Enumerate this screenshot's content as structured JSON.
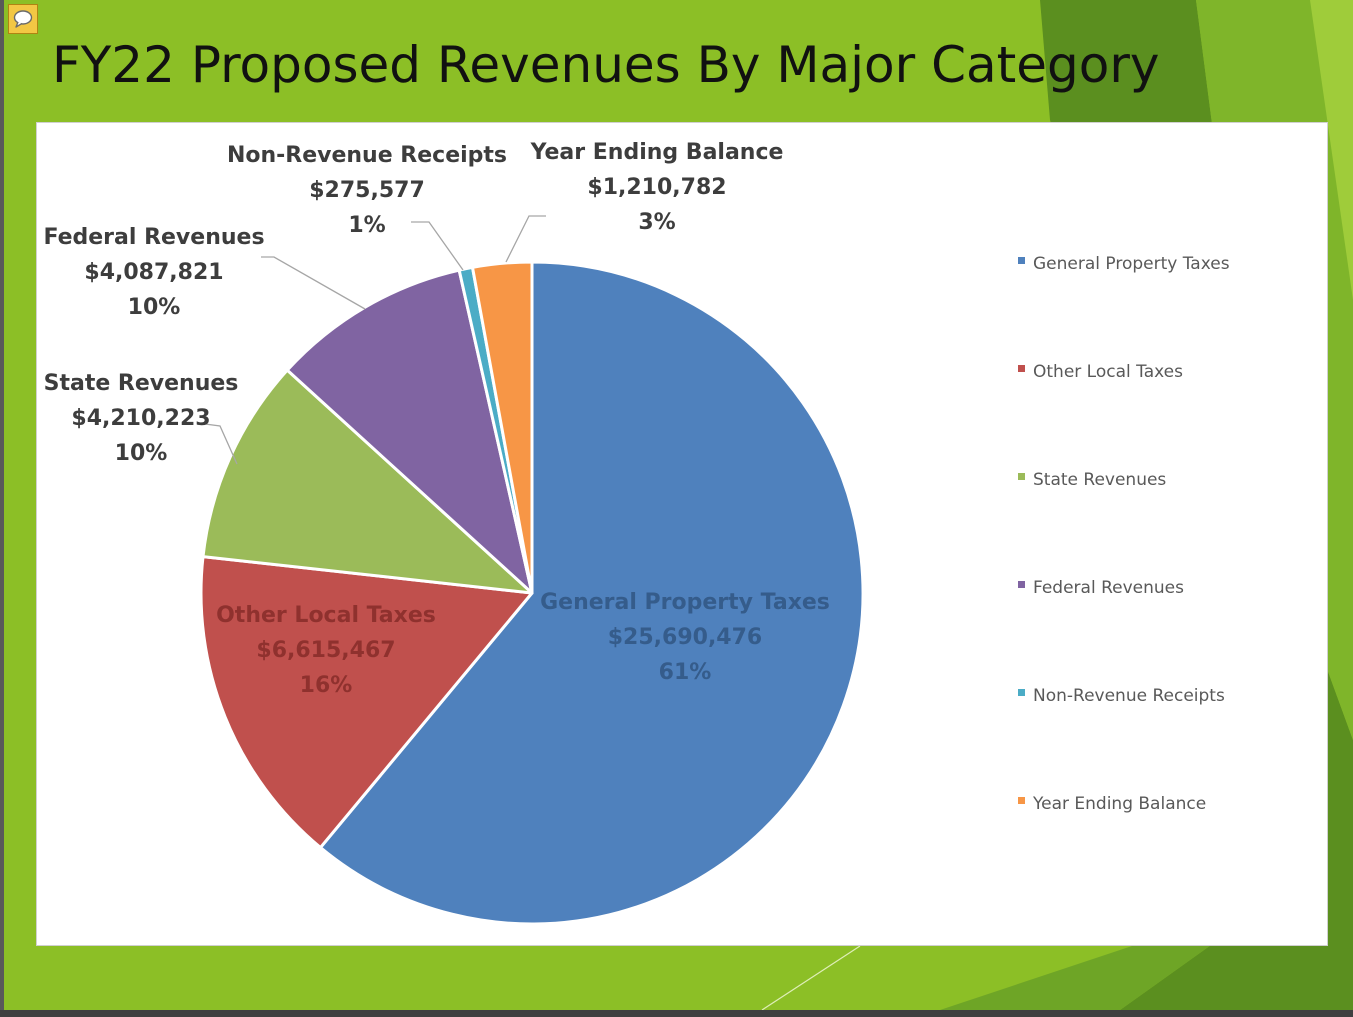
{
  "slide": {
    "title": "FY22 Proposed Revenues By Major Category"
  },
  "icons": {
    "comment": "speech-bubble-icon"
  },
  "theme": {
    "background": "#8cbf26",
    "accent_dark": "#5b8f1f",
    "accent_light": "#a6d13a"
  },
  "chart_data": {
    "type": "pie",
    "title": "",
    "legend_position": "right",
    "slices": [
      {
        "name": "General Property Taxes",
        "amount_label": "$25,690,476",
        "percent_label": "61%",
        "value": 25690476,
        "color": "#4f81bd"
      },
      {
        "name": "Other Local Taxes",
        "amount_label": "$6,615,467",
        "percent_label": "16%",
        "value": 6615467,
        "color": "#c0504d"
      },
      {
        "name": "State Revenues",
        "amount_label": "$4,210,223",
        "percent_label": "10%",
        "value": 4210223,
        "color": "#9bbb59"
      },
      {
        "name": "Federal Revenues",
        "amount_label": "$4,087,821",
        "percent_label": "10%",
        "value": 4087821,
        "color": "#8064a2"
      },
      {
        "name": "Non-Revenue Receipts",
        "amount_label": "$275,577",
        "percent_label": "1%",
        "value": 275577,
        "color": "#4bacc6"
      },
      {
        "name": "Year Ending Balance",
        "amount_label": "$1,210,782",
        "percent_label": "3%",
        "value": 1210782,
        "color": "#f79646"
      }
    ]
  }
}
